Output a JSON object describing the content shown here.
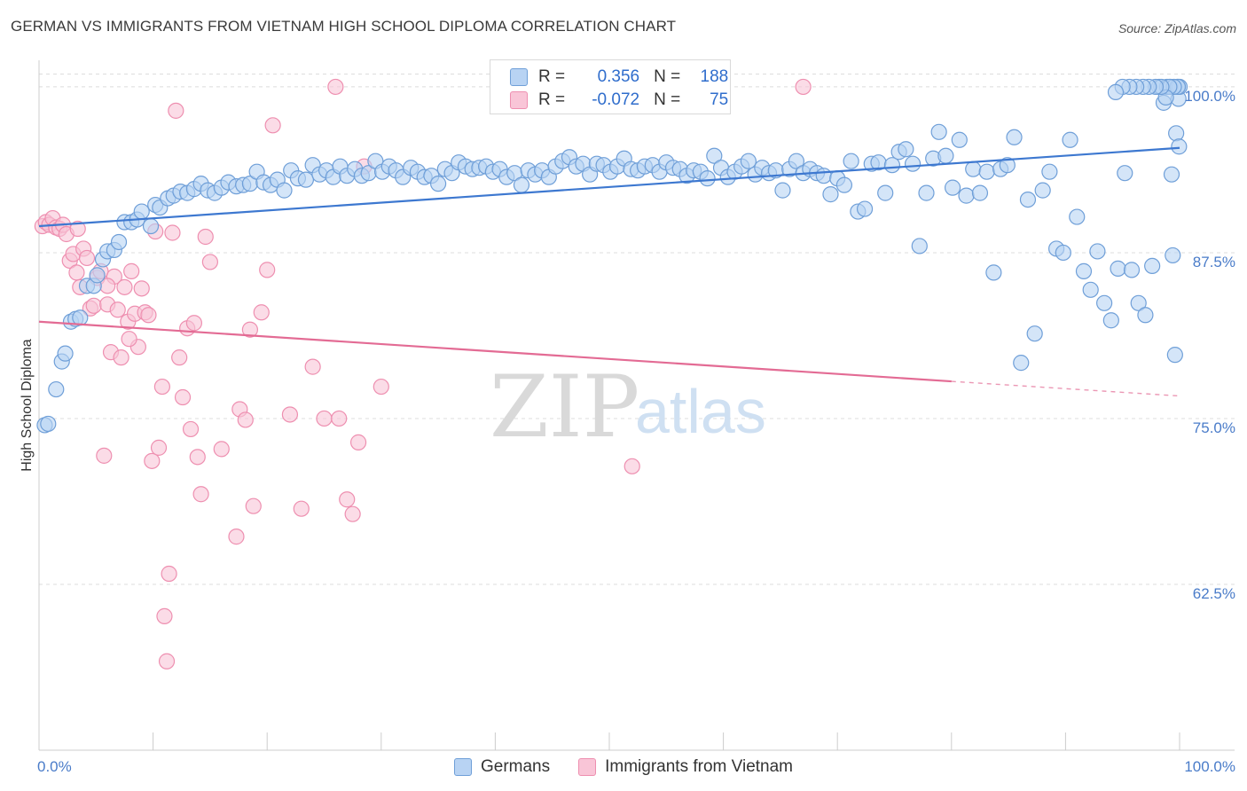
{
  "chart_data": {
    "type": "scatter",
    "title": "GERMAN VS IMMIGRANTS FROM VIETNAM HIGH SCHOOL DIPLOMA CORRELATION CHART",
    "source": "Source: ZipAtlas.com",
    "ylabel": "High School Diploma",
    "xlim": [
      0,
      100
    ],
    "ylim": [
      50,
      102
    ],
    "x_tick_labels": [
      "0.0%",
      "100.0%"
    ],
    "y_ticks": [
      62.5,
      75.0,
      87.5,
      100.0
    ],
    "y_tick_labels": [
      "62.5%",
      "75.0%",
      "87.5%",
      "100.0%"
    ],
    "watermark": {
      "zip": "ZIP",
      "atlas": "atlas"
    },
    "colors": {
      "german_fill": "#b8d3f3",
      "german_stroke": "#6f9fd8",
      "german_line": "#3d78d0",
      "vietnam_fill": "#f9c5d7",
      "vietnam_stroke": "#ee8fb0",
      "vietnam_line": "#e36b94",
      "grid": "#dcdcdc",
      "axis_text": "#4a7cc9"
    },
    "legend": {
      "r_label": "R =",
      "n_label": "N =",
      "entries": [
        {
          "name": "Germans",
          "r": "0.356",
          "n": "188"
        },
        {
          "name": "Immigrants from Vietnam",
          "r": "-0.072",
          "n": "75"
        }
      ]
    },
    "series": [
      {
        "name": "Germans",
        "trend": {
          "x": [
            0,
            100
          ],
          "y": [
            89.5,
            95.4
          ]
        },
        "points": [
          [
            0.5,
            74.5
          ],
          [
            0.8,
            74.6
          ],
          [
            1.5,
            77.2
          ],
          [
            2,
            79.3
          ],
          [
            2.3,
            79.9
          ],
          [
            2.8,
            82.3
          ],
          [
            3.2,
            82.5
          ],
          [
            3.6,
            82.6
          ],
          [
            4.2,
            85.0
          ],
          [
            4.8,
            85.0
          ],
          [
            5.1,
            85.8
          ],
          [
            5.6,
            87.0
          ],
          [
            6.0,
            87.6
          ],
          [
            6.6,
            87.7
          ],
          [
            7.0,
            88.3
          ],
          [
            7.5,
            89.8
          ],
          [
            8.1,
            89.8
          ],
          [
            8.6,
            90.0
          ],
          [
            9.0,
            90.6
          ],
          [
            9.8,
            89.5
          ],
          [
            10.2,
            91.1
          ],
          [
            10.6,
            90.9
          ],
          [
            11.3,
            91.6
          ],
          [
            11.8,
            91.8
          ],
          [
            12.4,
            92.1
          ],
          [
            13.0,
            92.0
          ],
          [
            13.6,
            92.3
          ],
          [
            14.2,
            92.7
          ],
          [
            14.8,
            92.2
          ],
          [
            15.4,
            92.0
          ],
          [
            16.0,
            92.4
          ],
          [
            16.6,
            92.8
          ],
          [
            17.3,
            92.5
          ],
          [
            17.9,
            92.6
          ],
          [
            18.5,
            92.7
          ],
          [
            19.1,
            93.6
          ],
          [
            19.7,
            92.8
          ],
          [
            20.3,
            92.6
          ],
          [
            20.9,
            93.0
          ],
          [
            21.5,
            92.2
          ],
          [
            22.1,
            93.7
          ],
          [
            22.7,
            93.1
          ],
          [
            23.4,
            93.0
          ],
          [
            24.0,
            94.1
          ],
          [
            24.6,
            93.4
          ],
          [
            25.2,
            93.7
          ],
          [
            25.8,
            93.2
          ],
          [
            26.4,
            94.0
          ],
          [
            27.0,
            93.3
          ],
          [
            27.7,
            93.8
          ],
          [
            28.3,
            93.3
          ],
          [
            28.9,
            93.5
          ],
          [
            29.5,
            94.4
          ],
          [
            30.1,
            93.6
          ],
          [
            30.7,
            94.0
          ],
          [
            31.3,
            93.7
          ],
          [
            31.9,
            93.2
          ],
          [
            32.6,
            93.9
          ],
          [
            33.2,
            93.6
          ],
          [
            33.8,
            93.2
          ],
          [
            34.4,
            93.3
          ],
          [
            35.0,
            92.7
          ],
          [
            35.6,
            93.8
          ],
          [
            36.2,
            93.5
          ],
          [
            36.8,
            94.3
          ],
          [
            37.4,
            94.0
          ],
          [
            38.0,
            93.8
          ],
          [
            38.6,
            93.9
          ],
          [
            39.2,
            94.0
          ],
          [
            39.8,
            93.6
          ],
          [
            40.4,
            93.8
          ],
          [
            41.0,
            93.2
          ],
          [
            41.7,
            93.5
          ],
          [
            42.3,
            92.6
          ],
          [
            42.9,
            93.7
          ],
          [
            43.5,
            93.4
          ],
          [
            44.1,
            93.7
          ],
          [
            44.7,
            93.2
          ],
          [
            45.3,
            94.0
          ],
          [
            45.9,
            94.4
          ],
          [
            46.5,
            94.7
          ],
          [
            47.1,
            94.0
          ],
          [
            47.7,
            94.2
          ],
          [
            48.3,
            93.4
          ],
          [
            48.9,
            94.2
          ],
          [
            49.5,
            94.1
          ],
          [
            50.1,
            93.6
          ],
          [
            50.7,
            94.0
          ],
          [
            51.3,
            94.6
          ],
          [
            51.9,
            93.8
          ],
          [
            52.5,
            93.7
          ],
          [
            53.1,
            94.0
          ],
          [
            53.8,
            94.1
          ],
          [
            54.4,
            93.6
          ],
          [
            55.0,
            94.3
          ],
          [
            55.6,
            93.9
          ],
          [
            56.2,
            93.8
          ],
          [
            56.8,
            93.3
          ],
          [
            57.4,
            93.7
          ],
          [
            58.0,
            93.6
          ],
          [
            58.6,
            93.1
          ],
          [
            59.2,
            94.8
          ],
          [
            59.8,
            93.9
          ],
          [
            60.4,
            93.2
          ],
          [
            61.0,
            93.6
          ],
          [
            61.6,
            94.0
          ],
          [
            62.2,
            94.4
          ],
          [
            62.8,
            93.4
          ],
          [
            63.4,
            93.9
          ],
          [
            64.0,
            93.5
          ],
          [
            64.6,
            93.7
          ],
          [
            65.2,
            92.2
          ],
          [
            65.8,
            93.8
          ],
          [
            66.4,
            94.4
          ],
          [
            67.0,
            93.5
          ],
          [
            67.6,
            93.8
          ],
          [
            68.2,
            93.5
          ],
          [
            68.8,
            93.3
          ],
          [
            69.4,
            91.9
          ],
          [
            70.0,
            93.1
          ],
          [
            70.6,
            92.6
          ],
          [
            71.2,
            94.4
          ],
          [
            71.8,
            90.6
          ],
          [
            72.4,
            90.8
          ],
          [
            73.0,
            94.2
          ],
          [
            73.6,
            94.3
          ],
          [
            74.2,
            92.0
          ],
          [
            74.8,
            94.1
          ],
          [
            75.4,
            95.1
          ],
          [
            76.0,
            95.3
          ],
          [
            76.6,
            94.2
          ],
          [
            77.2,
            88.0
          ],
          [
            77.8,
            92.0
          ],
          [
            78.4,
            94.6
          ],
          [
            78.9,
            96.6
          ],
          [
            79.5,
            94.8
          ],
          [
            80.1,
            92.4
          ],
          [
            80.7,
            96.0
          ],
          [
            81.3,
            91.8
          ],
          [
            81.9,
            93.8
          ],
          [
            82.5,
            92.0
          ],
          [
            83.1,
            93.6
          ],
          [
            83.7,
            86.0
          ],
          [
            84.3,
            93.8
          ],
          [
            84.9,
            94.1
          ],
          [
            85.5,
            96.2
          ],
          [
            86.1,
            79.2
          ],
          [
            86.7,
            91.5
          ],
          [
            87.3,
            81.4
          ],
          [
            88.0,
            92.2
          ],
          [
            88.6,
            93.6
          ],
          [
            89.2,
            87.8
          ],
          [
            89.8,
            87.5
          ],
          [
            90.4,
            96.0
          ],
          [
            91.0,
            90.2
          ],
          [
            91.6,
            86.1
          ],
          [
            92.2,
            84.7
          ],
          [
            92.8,
            87.6
          ],
          [
            93.4,
            83.7
          ],
          [
            94.0,
            82.4
          ],
          [
            94.6,
            86.3
          ],
          [
            95.2,
            93.5
          ],
          [
            95.8,
            86.2
          ],
          [
            96.4,
            83.7
          ],
          [
            97.0,
            82.8
          ],
          [
            97.6,
            86.5
          ],
          [
            98.2,
            100.0
          ],
          [
            98.6,
            98.8
          ],
          [
            98.9,
            100.0
          ],
          [
            99.2,
            100.0
          ],
          [
            99.4,
            87.3
          ],
          [
            99.6,
            79.8
          ],
          [
            99.7,
            96.5
          ],
          [
            99.8,
            100.0
          ],
          [
            99.9,
            99.1
          ],
          [
            100.0,
            100.0
          ],
          [
            99.85,
            100.0
          ],
          [
            99.95,
            95.5
          ],
          [
            99.5,
            100.0
          ],
          [
            99.3,
            93.4
          ],
          [
            99.1,
            100.0
          ],
          [
            98.8,
            99.2
          ],
          [
            98.4,
            100.0
          ],
          [
            97.9,
            100.0
          ],
          [
            97.3,
            100.0
          ],
          [
            96.8,
            100.0
          ],
          [
            96.2,
            100.0
          ],
          [
            95.6,
            100.0
          ],
          [
            95.0,
            100.0
          ],
          [
            94.4,
            99.6
          ]
        ]
      },
      {
        "name": "Immigrants from Vietnam",
        "trend": {
          "x": [
            0,
            80
          ],
          "y": [
            82.3,
            77.8
          ]
        },
        "dash_to": {
          "x": 100,
          "y": 76.7
        },
        "points": [
          [
            0.3,
            89.5
          ],
          [
            0.6,
            89.8
          ],
          [
            0.9,
            89.6
          ],
          [
            1.2,
            90.1
          ],
          [
            1.5,
            89.4
          ],
          [
            1.8,
            89.3
          ],
          [
            2.1,
            89.6
          ],
          [
            2.4,
            88.9
          ],
          [
            2.7,
            86.9
          ],
          [
            3.0,
            87.4
          ],
          [
            3.3,
            86.0
          ],
          [
            3.6,
            84.9
          ],
          [
            3.9,
            87.8
          ],
          [
            4.2,
            87.1
          ],
          [
            4.5,
            83.3
          ],
          [
            4.8,
            83.5
          ],
          [
            5.1,
            85.6
          ],
          [
            5.4,
            86.1
          ],
          [
            5.7,
            72.2
          ],
          [
            6.0,
            83.6
          ],
          [
            6.3,
            80.0
          ],
          [
            6.6,
            85.7
          ],
          [
            6.9,
            83.2
          ],
          [
            7.2,
            79.6
          ],
          [
            7.5,
            84.9
          ],
          [
            7.8,
            82.3
          ],
          [
            8.1,
            86.1
          ],
          [
            8.4,
            82.9
          ],
          [
            8.7,
            80.4
          ],
          [
            9.0,
            84.8
          ],
          [
            9.3,
            83.0
          ],
          [
            9.6,
            82.8
          ],
          [
            9.9,
            71.8
          ],
          [
            10.2,
            89.1
          ],
          [
            10.5,
            72.8
          ],
          [
            10.8,
            77.4
          ],
          [
            11.0,
            60.1
          ],
          [
            11.2,
            56.7
          ],
          [
            11.4,
            63.3
          ],
          [
            11.7,
            89.0
          ],
          [
            12.0,
            98.2
          ],
          [
            12.3,
            79.6
          ],
          [
            12.6,
            76.6
          ],
          [
            13.0,
            81.8
          ],
          [
            13.3,
            74.2
          ],
          [
            13.6,
            82.2
          ],
          [
            13.9,
            72.1
          ],
          [
            14.2,
            69.3
          ],
          [
            14.6,
            88.7
          ],
          [
            15.0,
            86.8
          ],
          [
            16.0,
            72.7
          ],
          [
            17.3,
            66.1
          ],
          [
            17.6,
            75.7
          ],
          [
            18.1,
            74.9
          ],
          [
            18.5,
            81.7
          ],
          [
            18.8,
            68.4
          ],
          [
            19.5,
            83.0
          ],
          [
            20.0,
            86.2
          ],
          [
            20.5,
            97.1
          ],
          [
            22.0,
            75.3
          ],
          [
            23.0,
            68.2
          ],
          [
            24.0,
            78.9
          ],
          [
            25.0,
            75.0
          ],
          [
            26.0,
            100.0
          ],
          [
            26.3,
            75.0
          ],
          [
            27.0,
            68.9
          ],
          [
            27.5,
            67.8
          ],
          [
            28.0,
            73.2
          ],
          [
            28.5,
            94.0
          ],
          [
            30.0,
            77.4
          ],
          [
            52.0,
            71.4
          ],
          [
            67.0,
            100.0
          ],
          [
            6.0,
            85.0
          ],
          [
            7.9,
            81.0
          ],
          [
            3.4,
            89.3
          ]
        ]
      }
    ]
  }
}
